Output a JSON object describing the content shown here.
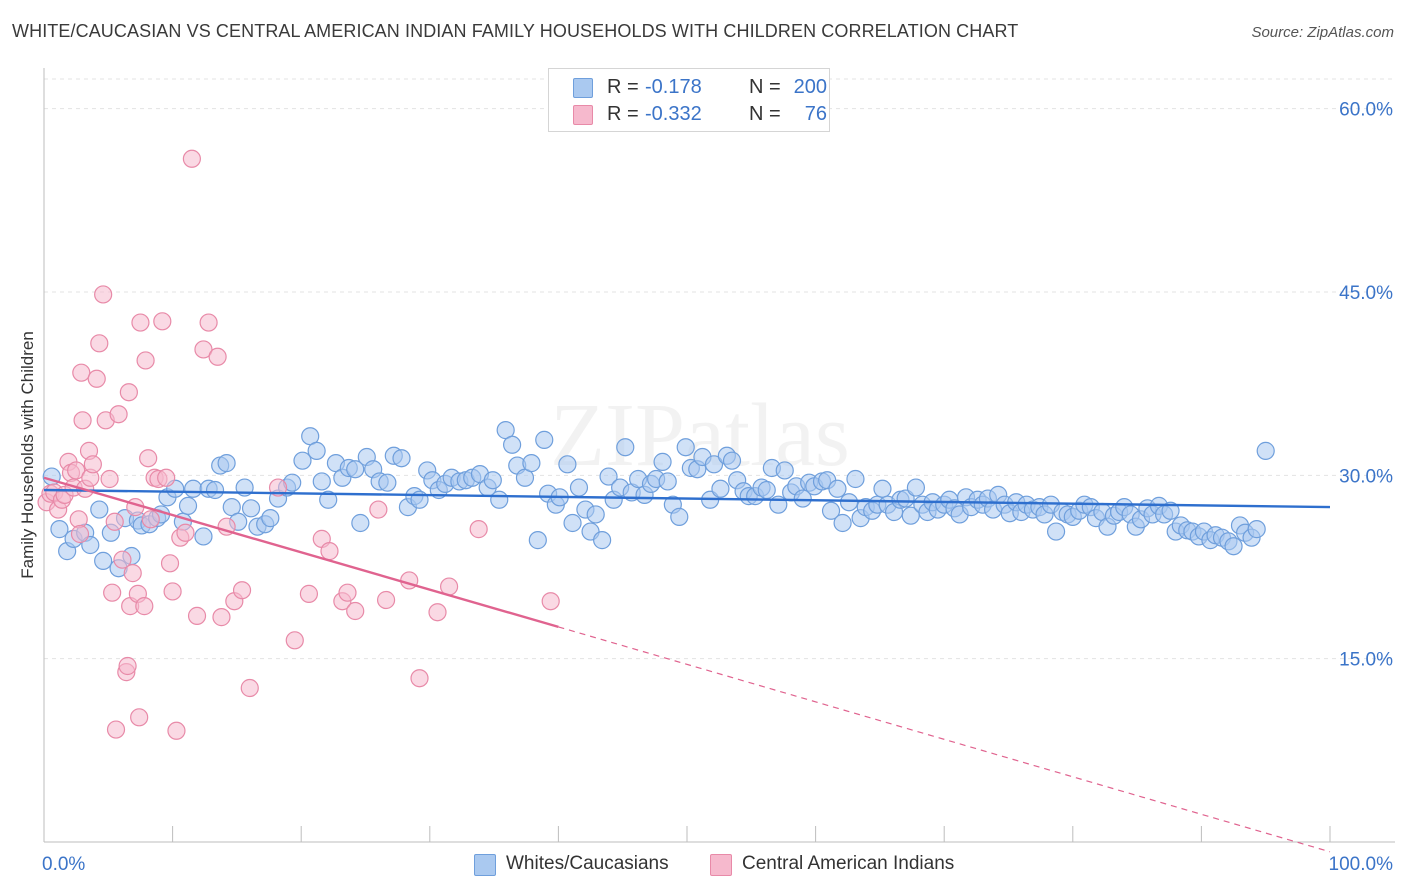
{
  "title": "WHITE/CAUCASIAN VS CENTRAL AMERICAN INDIAN FAMILY HOUSEHOLDS WITH CHILDREN CORRELATION CHART",
  "source": "Source: ZipAtlas.com",
  "watermark": "ZIPatlas",
  "legend": {
    "rows": [
      {
        "r_label": "R =",
        "r_value": "-0.178",
        "n_label": "N =",
        "n_value": "200",
        "fill": "#aac9f0",
        "stroke": "#6f9fdc"
      },
      {
        "r_label": "R =",
        "r_value": "-0.332",
        "n_label": "N =",
        "n_value": "76",
        "fill": "#f6b9cd",
        "stroke": "#e88aa8"
      }
    ]
  },
  "bottom_legend": [
    "Whites/Caucasians",
    "Central American Indians"
  ],
  "chart_data": {
    "type": "scatter",
    "xlabel": "",
    "ylabel": "Family Households with Children",
    "xlim": [
      0,
      100
    ],
    "ylim": [
      0,
      63
    ],
    "x_tick_labels": [
      "0.0%",
      "100.0%"
    ],
    "y_ticks": [
      15,
      30,
      45,
      60
    ],
    "y_tick_labels": [
      "15.0%",
      "30.0%",
      "45.0%",
      "60.0%"
    ],
    "grid": "horizontal dashed",
    "legend_placement": "top-center",
    "series": [
      {
        "name": "Whites/Caucasians",
        "color": "#6f9fdc",
        "fill": "#aac9f0",
        "trend": {
          "x": [
            0,
            100
          ],
          "y": [
            28.8,
            27.4
          ],
          "dashed_after": 100
        },
        "points": [
          [
            0.6,
            29.9
          ],
          [
            1.2,
            25.6
          ],
          [
            1.8,
            23.8
          ],
          [
            2.3,
            24.8
          ],
          [
            3.2,
            25.3
          ],
          [
            3.6,
            24.3
          ],
          [
            4.3,
            27.2
          ],
          [
            4.6,
            23.0
          ],
          [
            5.2,
            25.3
          ],
          [
            5.8,
            22.4
          ],
          [
            6.3,
            26.5
          ],
          [
            6.8,
            23.4
          ],
          [
            7.3,
            26.3
          ],
          [
            7.6,
            25.9
          ],
          [
            8.2,
            26.0
          ],
          [
            8.8,
            26.5
          ],
          [
            9.1,
            26.8
          ],
          [
            9.6,
            28.2
          ],
          [
            10.2,
            28.9
          ],
          [
            10.8,
            26.2
          ],
          [
            11.2,
            27.5
          ],
          [
            11.6,
            28.9
          ],
          [
            12.4,
            25.0
          ],
          [
            12.8,
            28.9
          ],
          [
            13.3,
            28.8
          ],
          [
            13.7,
            30.8
          ],
          [
            14.2,
            31.0
          ],
          [
            14.6,
            27.4
          ],
          [
            15.1,
            26.2
          ],
          [
            15.6,
            29.0
          ],
          [
            16.1,
            27.3
          ],
          [
            16.6,
            25.8
          ],
          [
            17.2,
            26.0
          ],
          [
            17.6,
            26.5
          ],
          [
            18.2,
            28.1
          ],
          [
            18.9,
            29.0
          ],
          [
            19.3,
            29.4
          ],
          [
            20.1,
            31.2
          ],
          [
            20.7,
            33.2
          ],
          [
            21.2,
            32.0
          ],
          [
            21.6,
            29.5
          ],
          [
            22.1,
            28.0
          ],
          [
            22.7,
            31.0
          ],
          [
            23.2,
            29.8
          ],
          [
            23.7,
            30.6
          ],
          [
            24.2,
            30.5
          ],
          [
            24.6,
            26.1
          ],
          [
            25.1,
            31.5
          ],
          [
            25.6,
            30.5
          ],
          [
            26.1,
            29.5
          ],
          [
            26.7,
            29.4
          ],
          [
            27.2,
            31.6
          ],
          [
            27.8,
            31.4
          ],
          [
            28.3,
            27.4
          ],
          [
            28.8,
            28.3
          ],
          [
            29.2,
            28.0
          ],
          [
            29.8,
            30.4
          ],
          [
            30.2,
            29.6
          ],
          [
            30.7,
            28.8
          ],
          [
            31.2,
            29.3
          ],
          [
            31.7,
            29.8
          ],
          [
            32.3,
            29.5
          ],
          [
            32.8,
            29.6
          ],
          [
            33.3,
            29.8
          ],
          [
            33.9,
            30.1
          ],
          [
            34.5,
            29.0
          ],
          [
            34.9,
            29.6
          ],
          [
            35.4,
            28.0
          ],
          [
            35.9,
            33.7
          ],
          [
            36.4,
            32.5
          ],
          [
            36.8,
            30.8
          ],
          [
            37.4,
            29.8
          ],
          [
            37.9,
            31.0
          ],
          [
            38.4,
            24.7
          ],
          [
            38.9,
            32.9
          ],
          [
            39.2,
            28.5
          ],
          [
            39.8,
            27.6
          ],
          [
            40.1,
            28.2
          ],
          [
            40.7,
            30.9
          ],
          [
            41.1,
            26.1
          ],
          [
            41.6,
            29.0
          ],
          [
            42.1,
            27.2
          ],
          [
            42.5,
            25.4
          ],
          [
            42.9,
            26.8
          ],
          [
            43.4,
            24.7
          ],
          [
            43.9,
            29.9
          ],
          [
            44.3,
            28.0
          ],
          [
            44.8,
            29.0
          ],
          [
            45.2,
            32.3
          ],
          [
            45.7,
            28.6
          ],
          [
            46.2,
            29.7
          ],
          [
            46.7,
            28.4
          ],
          [
            47.2,
            29.3
          ],
          [
            47.6,
            29.7
          ],
          [
            48.1,
            31.1
          ],
          [
            48.5,
            29.5
          ],
          [
            48.9,
            27.6
          ],
          [
            49.4,
            26.6
          ],
          [
            49.9,
            32.3
          ],
          [
            50.3,
            30.6
          ],
          [
            50.8,
            30.5
          ],
          [
            51.2,
            31.5
          ],
          [
            51.8,
            28.0
          ],
          [
            52.1,
            30.9
          ],
          [
            52.6,
            28.9
          ],
          [
            53.1,
            31.6
          ],
          [
            53.5,
            31.2
          ],
          [
            53.9,
            29.6
          ],
          [
            54.4,
            28.7
          ],
          [
            54.8,
            28.3
          ],
          [
            55.3,
            28.3
          ],
          [
            55.8,
            29.0
          ],
          [
            56.2,
            28.8
          ],
          [
            56.6,
            30.6
          ],
          [
            57.1,
            27.6
          ],
          [
            57.6,
            30.4
          ],
          [
            58.1,
            28.6
          ],
          [
            58.5,
            29.1
          ],
          [
            59.0,
            28.1
          ],
          [
            59.5,
            29.4
          ],
          [
            59.9,
            29.1
          ],
          [
            60.5,
            29.5
          ],
          [
            60.9,
            29.6
          ],
          [
            61.2,
            27.1
          ],
          [
            61.7,
            28.9
          ],
          [
            62.1,
            26.1
          ],
          [
            62.6,
            27.8
          ],
          [
            63.1,
            29.7
          ],
          [
            63.5,
            26.5
          ],
          [
            63.9,
            27.4
          ],
          [
            64.4,
            27.1
          ],
          [
            64.8,
            27.6
          ],
          [
            65.2,
            28.9
          ],
          [
            65.6,
            27.6
          ],
          [
            66.1,
            27.0
          ],
          [
            66.6,
            28.0
          ],
          [
            67.0,
            28.1
          ],
          [
            67.4,
            26.7
          ],
          [
            67.8,
            29.0
          ],
          [
            68.3,
            27.6
          ],
          [
            68.7,
            27.0
          ],
          [
            69.1,
            27.8
          ],
          [
            69.5,
            27.2
          ],
          [
            70.0,
            27.6
          ],
          [
            70.4,
            28.0
          ],
          [
            70.8,
            27.3
          ],
          [
            71.2,
            26.8
          ],
          [
            71.7,
            28.2
          ],
          [
            72.1,
            27.4
          ],
          [
            72.6,
            28.0
          ],
          [
            73.0,
            27.6
          ],
          [
            73.4,
            28.1
          ],
          [
            73.8,
            27.2
          ],
          [
            74.2,
            28.4
          ],
          [
            74.7,
            27.6
          ],
          [
            75.1,
            26.9
          ],
          [
            75.6,
            27.8
          ],
          [
            76.0,
            27.0
          ],
          [
            76.4,
            27.6
          ],
          [
            76.9,
            27.2
          ],
          [
            77.4,
            27.4
          ],
          [
            77.8,
            26.8
          ],
          [
            78.3,
            27.6
          ],
          [
            78.7,
            25.4
          ],
          [
            79.2,
            27.0
          ],
          [
            79.6,
            26.8
          ],
          [
            80.0,
            26.6
          ],
          [
            80.5,
            27.1
          ],
          [
            80.9,
            27.6
          ],
          [
            81.4,
            27.4
          ],
          [
            81.8,
            26.5
          ],
          [
            82.3,
            27.0
          ],
          [
            82.7,
            25.8
          ],
          [
            83.2,
            26.7
          ],
          [
            83.6,
            27.0
          ],
          [
            84.0,
            27.4
          ],
          [
            84.5,
            26.8
          ],
          [
            84.9,
            25.8
          ],
          [
            85.3,
            26.4
          ],
          [
            85.8,
            27.3
          ],
          [
            86.2,
            26.8
          ],
          [
            86.7,
            27.5
          ],
          [
            87.1,
            26.8
          ],
          [
            87.6,
            27.1
          ],
          [
            88.0,
            25.4
          ],
          [
            88.4,
            25.9
          ],
          [
            88.9,
            25.5
          ],
          [
            89.3,
            25.4
          ],
          [
            89.8,
            25.0
          ],
          [
            90.2,
            25.4
          ],
          [
            90.7,
            24.7
          ],
          [
            91.1,
            25.1
          ],
          [
            91.6,
            24.9
          ],
          [
            92.1,
            24.6
          ],
          [
            92.5,
            24.2
          ],
          [
            93.0,
            25.9
          ],
          [
            93.4,
            25.3
          ],
          [
            93.9,
            24.9
          ],
          [
            94.3,
            25.6
          ],
          [
            95.0,
            32.0
          ]
        ]
      },
      {
        "name": "Central American Indians",
        "color": "#e88aa8",
        "fill": "#f6b9cd",
        "trend": {
          "x": [
            0,
            40,
            100
          ],
          "y": [
            29.8,
            17.6,
            -0.8
          ],
          "dashed_after": 40
        },
        "points": [
          [
            0.2,
            27.8
          ],
          [
            0.5,
            28.5
          ],
          [
            0.8,
            28.6
          ],
          [
            1.1,
            27.2
          ],
          [
            1.4,
            28.0
          ],
          [
            1.6,
            28.4
          ],
          [
            1.9,
            31.1
          ],
          [
            2.1,
            30.2
          ],
          [
            2.3,
            29.0
          ],
          [
            2.5,
            30.4
          ],
          [
            2.7,
            26.4
          ],
          [
            2.8,
            25.2
          ],
          [
            2.9,
            38.4
          ],
          [
            3.0,
            34.5
          ],
          [
            3.2,
            28.9
          ],
          [
            3.5,
            32.0
          ],
          [
            3.6,
            29.8
          ],
          [
            3.8,
            30.9
          ],
          [
            4.1,
            37.9
          ],
          [
            4.3,
            40.8
          ],
          [
            4.6,
            44.8
          ],
          [
            4.8,
            34.5
          ],
          [
            5.1,
            29.7
          ],
          [
            5.3,
            20.4
          ],
          [
            5.5,
            26.2
          ],
          [
            5.6,
            9.2
          ],
          [
            5.8,
            35.0
          ],
          [
            6.1,
            23.1
          ],
          [
            6.4,
            13.9
          ],
          [
            6.5,
            14.4
          ],
          [
            6.6,
            36.8
          ],
          [
            6.7,
            19.3
          ],
          [
            6.9,
            22.0
          ],
          [
            7.1,
            27.4
          ],
          [
            7.3,
            20.3
          ],
          [
            7.4,
            10.2
          ],
          [
            7.5,
            42.5
          ],
          [
            7.8,
            19.3
          ],
          [
            7.9,
            39.4
          ],
          [
            8.1,
            31.4
          ],
          [
            8.3,
            26.4
          ],
          [
            8.6,
            29.8
          ],
          [
            8.9,
            29.7
          ],
          [
            9.2,
            42.6
          ],
          [
            9.5,
            29.8
          ],
          [
            9.8,
            22.8
          ],
          [
            10.0,
            20.5
          ],
          [
            10.3,
            9.1
          ],
          [
            10.6,
            24.9
          ],
          [
            11.0,
            25.3
          ],
          [
            11.5,
            55.9
          ],
          [
            11.9,
            18.5
          ],
          [
            12.4,
            40.3
          ],
          [
            12.8,
            42.5
          ],
          [
            13.5,
            39.7
          ],
          [
            13.8,
            18.4
          ],
          [
            14.2,
            25.8
          ],
          [
            14.8,
            19.7
          ],
          [
            15.4,
            20.6
          ],
          [
            16.0,
            12.6
          ],
          [
            18.2,
            29.0
          ],
          [
            19.5,
            16.5
          ],
          [
            20.6,
            20.3
          ],
          [
            21.6,
            24.8
          ],
          [
            22.2,
            23.8
          ],
          [
            23.2,
            19.7
          ],
          [
            23.6,
            20.4
          ],
          [
            24.2,
            18.9
          ],
          [
            26.0,
            27.2
          ],
          [
            26.6,
            19.8
          ],
          [
            28.4,
            21.4
          ],
          [
            29.2,
            13.4
          ],
          [
            30.6,
            18.8
          ],
          [
            31.5,
            20.9
          ],
          [
            33.8,
            25.6
          ],
          [
            39.4,
            19.7
          ]
        ]
      }
    ]
  }
}
